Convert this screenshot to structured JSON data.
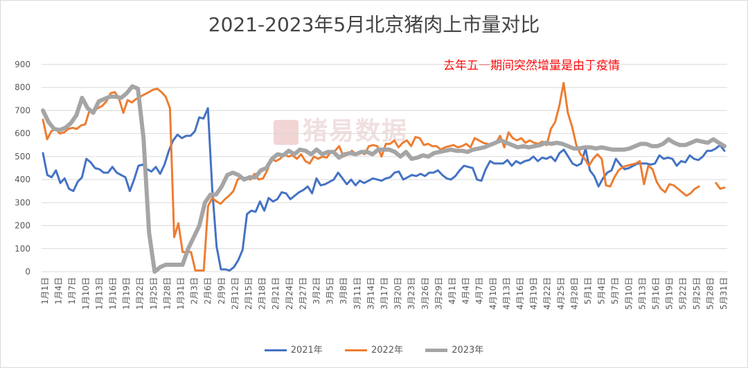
{
  "chart_data": {
    "type": "line",
    "title": "2021-2023年5月北京猪肉上市量对比",
    "annotation": "去年五一期间突然增量是由于疫情",
    "watermark": "猪易数据",
    "ylim": [
      0,
      900
    ],
    "yticks": [
      0,
      100,
      200,
      300,
      400,
      500,
      600,
      700,
      800,
      900
    ],
    "grid": true,
    "legend_position": "bottom",
    "x_tick_labels": [
      "1月1日",
      "1月4日",
      "1月7日",
      "1月10日",
      "1月13日",
      "1月16日",
      "1月19日",
      "1月22日",
      "1月25日",
      "1月28日",
      "1月31日",
      "2月3日",
      "2月6日",
      "2月9日",
      "2月12日",
      "2月15日",
      "2月18日",
      "2月21日",
      "2月24日",
      "2月27日",
      "3月2日",
      "3月5日",
      "3月8日",
      "3月11日",
      "3月14日",
      "3月17日",
      "3月20日",
      "3月23日",
      "3月26日",
      "3月29日",
      "4月1日",
      "4月4日",
      "4月7日",
      "4月10日",
      "4月13日",
      "4月16日",
      "4月19日",
      "4月22日",
      "4月25日",
      "4月28日",
      "5月1日",
      "5月4日",
      "5月7日",
      "5月10日",
      "5月13日",
      "5月16日",
      "5月19日",
      "5月22日",
      "5月25日",
      "5月28日",
      "5月31日"
    ],
    "series": [
      {
        "name": "2021年",
        "color": "#4472c4",
        "width": 3,
        "values": [
          515,
          420,
          410,
          440,
          385,
          405,
          360,
          350,
          390,
          410,
          490,
          475,
          450,
          445,
          430,
          430,
          455,
          430,
          420,
          410,
          350,
          400,
          460,
          465,
          445,
          435,
          455,
          425,
          465,
          525,
          570,
          595,
          580,
          590,
          590,
          610,
          670,
          665,
          710,
          360,
          110,
          10,
          10,
          5,
          20,
          50,
          95,
          250,
          265,
          260,
          305,
          265,
          320,
          305,
          315,
          345,
          340,
          315,
          330,
          345,
          355,
          370,
          340,
          405,
          375,
          380,
          390,
          400,
          430,
          405,
          380,
          400,
          375,
          395,
          385,
          395,
          405,
          400,
          395,
          405,
          410,
          430,
          435,
          400,
          410,
          420,
          415,
          425,
          415,
          430,
          430,
          440,
          420,
          405,
          400,
          415,
          440,
          460,
          455,
          450,
          400,
          395,
          445,
          480,
          470,
          470,
          470,
          485,
          460,
          480,
          470,
          480,
          485,
          500,
          480,
          495,
          490,
          500,
          480,
          515,
          530,
          500,
          470,
          460,
          470,
          535,
          440,
          415,
          370,
          405,
          430,
          440,
          490,
          465,
          445,
          450,
          460,
          470,
          470,
          470,
          465,
          470,
          505,
          490,
          495,
          490,
          460,
          480,
          475,
          505,
          490,
          485,
          500,
          525,
          525,
          535,
          550,
          525
        ]
      },
      {
        "name": "2022年",
        "color": "#ed7d31",
        "width": 3,
        "values": [
          660,
          575,
          610,
          620,
          600,
          605,
          620,
          625,
          620,
          635,
          640,
          700,
          700,
          710,
          720,
          740,
          775,
          780,
          750,
          690,
          745,
          735,
          750,
          760,
          770,
          780,
          790,
          795,
          780,
          760,
          710,
          150,
          210,
          85,
          85,
          85,
          5,
          5,
          5,
          285,
          320,
          305,
          295,
          315,
          330,
          350,
          400,
          410,
          405,
          400,
          425,
          400,
          405,
          440,
          490,
          480,
          490,
          510,
          500,
          505,
          490,
          510,
          480,
          470,
          500,
          490,
          500,
          495,
          520,
          525,
          545,
          500,
          510,
          525,
          510,
          520,
          510,
          545,
          550,
          545,
          500,
          555,
          555,
          570,
          540,
          560,
          570,
          545,
          585,
          580,
          550,
          555,
          545,
          545,
          530,
          540,
          545,
          550,
          540,
          545,
          555,
          540,
          580,
          570,
          560,
          555,
          550,
          560,
          590,
          540,
          605,
          580,
          570,
          580,
          560,
          570,
          560,
          555,
          565,
          550,
          620,
          650,
          720,
          820,
          690,
          630,
          550,
          510,
          490,
          460,
          490,
          510,
          490,
          375,
          370,
          410,
          440,
          455,
          460,
          465,
          470,
          480,
          380,
          460,
          445,
          390,
          360,
          345,
          380,
          375,
          360,
          345,
          330,
          340,
          360,
          370,
          null,
          null,
          null,
          385,
          360,
          365
        ]
      },
      {
        "name": "2023年",
        "color": "#a5a5a5",
        "width": 6,
        "values": [
          700,
          650,
          620,
          615,
          625,
          645,
          680,
          755,
          710,
          690,
          740,
          750,
          760,
          760,
          755,
          775,
          805,
          795,
          580,
          170,
          0,
          20,
          30,
          30,
          30,
          30,
          100,
          150,
          200,
          300,
          335,
          335,
          370,
          420,
          430,
          420,
          400,
          410,
          410,
          440,
          450,
          490,
          510,
          505,
          525,
          510,
          530,
          525,
          510,
          530,
          510,
          520,
          520,
          495,
          510,
          515,
          510,
          520,
          520,
          510,
          530,
          530,
          530,
          520,
          500,
          520,
          490,
          495,
          505,
          500,
          515,
          520,
          525,
          530,
          525,
          525,
          520,
          530,
          535,
          540,
          550,
          560,
          570,
          560,
          550,
          540,
          545,
          540,
          545,
          550,
          560,
          555,
          560,
          555,
          545,
          535,
          535,
          540,
          540,
          535,
          540,
          535,
          530,
          530,
          530,
          535,
          545,
          555,
          555,
          545,
          545,
          555,
          575,
          560,
          550,
          550,
          560,
          570,
          565,
          560,
          575,
          560,
          545
        ]
      }
    ]
  },
  "legend": {
    "items": [
      "2021年",
      "2022年",
      "2023年"
    ]
  }
}
